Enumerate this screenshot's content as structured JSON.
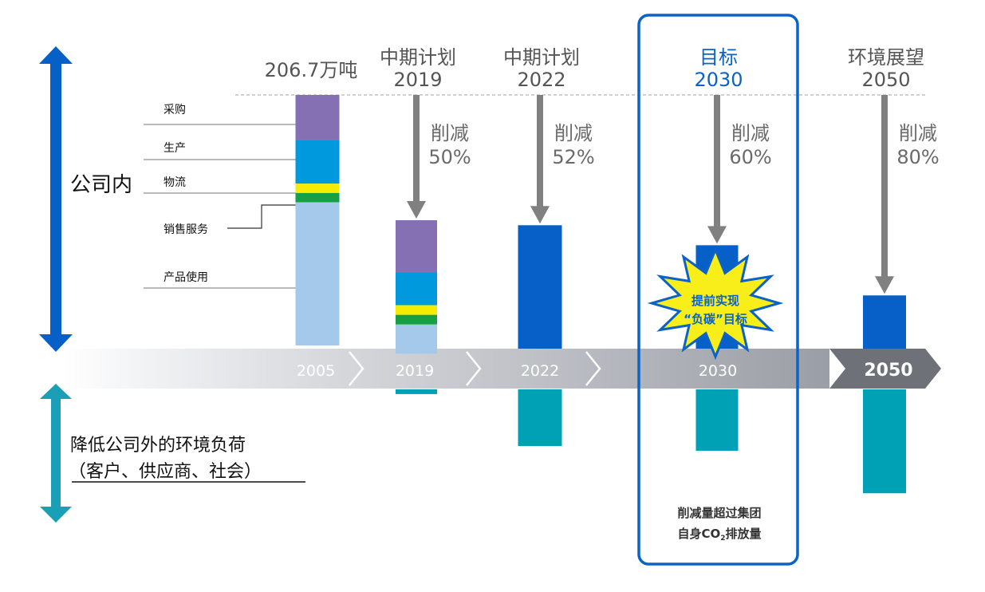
{
  "chart_data": {
    "type": "bar",
    "title": "",
    "xlabel": "",
    "ylabel": "",
    "colors": {
      "procurement": "#8470b3",
      "production": "#0099dd",
      "logistics_yellow": "#f5ec00",
      "logistics_green": "#16a044",
      "product_use": "#a5c9ea",
      "internal_bar": "#0660c8",
      "external_bar": "#00a1b5",
      "arrow": "#808080",
      "highlight": "#0b62c7",
      "star": "#f7ee1a"
    },
    "baseline_label": "206.7万吨",
    "baseline_total": 206.7,
    "segment_labels": [
      "采购",
      "生产",
      "物流",
      "销售服务",
      "产品使用"
    ],
    "upper_axis_label": "公司内",
    "lower_axis_label_line1": "降低公司外的环境负荷",
    "lower_axis_label_line2": "（客户、供应商、社会）",
    "timeline": [
      "2005",
      "2019",
      "2022",
      "2030",
      "2050"
    ],
    "columns": [
      {
        "year": "2005",
        "header_line1": "",
        "header_line2": "",
        "reduction_label": "",
        "reduction_pct": "",
        "internal_value": 206.7,
        "external_value": 0
      },
      {
        "year": "2019",
        "header_line1": "中期计划",
        "header_line2": "2019",
        "reduction_label": "削减",
        "reduction_pct": "50%",
        "internal_value": 103.35,
        "external_value": 0.2
      },
      {
        "year": "2022",
        "header_line1": "中期计划",
        "header_line2": "2022",
        "reduction_label": "削减",
        "reduction_pct": "52%",
        "internal_value": 99.2,
        "external_value": 2.4
      },
      {
        "year": "2030",
        "header_line1": "目标",
        "header_line2": "2030",
        "reduction_label": "削减",
        "reduction_pct": "60%",
        "internal_value": 82.7,
        "external_value": 2.6
      },
      {
        "year": "2050",
        "header_line1": "环境展望",
        "header_line2": "2050",
        "reduction_label": "削减",
        "reduction_pct": "80%",
        "internal_value": 41.3,
        "external_value": 4.4
      }
    ],
    "stack_2005": [
      {
        "name": "采购",
        "value": 37.5
      },
      {
        "name": "生产",
        "value": 35.7
      },
      {
        "name": "物流",
        "value": 15.4
      },
      {
        "name": "产品使用",
        "value": 118.1
      }
    ],
    "stack_2019": [
      {
        "name": "采购",
        "value": 43.1
      },
      {
        "name": "生产",
        "value": 27.0
      },
      {
        "name": "物流",
        "value": 16.0
      },
      {
        "name": "产品使用",
        "value": 24.0
      }
    ],
    "star_text_line1": "提前实现",
    "star_text_line2": "“负碳”目标",
    "note_line1": "削减量超过集团",
    "note_line2_prefix": "自身CO",
    "note_line2_sub": "2",
    "note_line2_suffix": "排放量"
  }
}
